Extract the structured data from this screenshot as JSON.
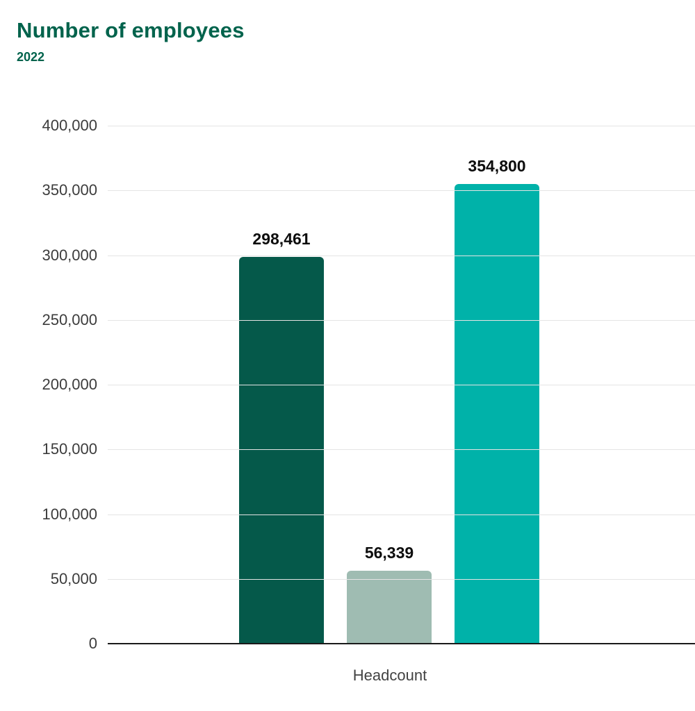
{
  "chart_data": {
    "type": "bar",
    "title": "Number of employees",
    "subtitle": "2022",
    "categories": [
      "Headcount"
    ],
    "series": [
      {
        "value": 298461,
        "label": "298,461",
        "color": "#05594A"
      },
      {
        "value": 56339,
        "label": "56,339",
        "color": "#9FBCB2"
      },
      {
        "value": 354800,
        "label": "354,800",
        "color": "#00B2A9"
      }
    ],
    "xlabel": "Headcount",
    "ylabel": "",
    "ylim": [
      0,
      400000
    ],
    "ytick_interval": 50000,
    "yticks": [
      "0",
      "50,000",
      "100,000",
      "150,000",
      "200,000",
      "250,000",
      "300,000",
      "350,000",
      "400,000"
    ],
    "grid": "horizontal",
    "legend": "none"
  },
  "colors": {
    "title_green": "#00634C",
    "gridline": "#E4E4E4",
    "axis_line": "#1A1A1A",
    "tick_text": "#3C3C3C",
    "value_label": "#0D0D0D"
  }
}
